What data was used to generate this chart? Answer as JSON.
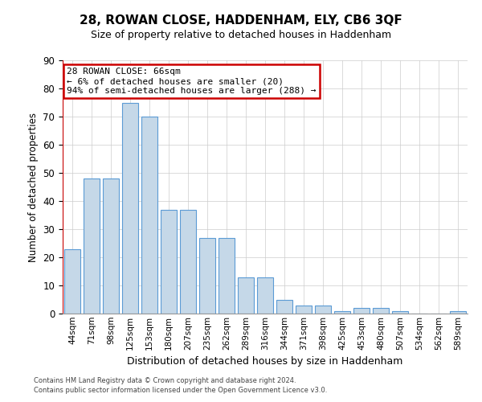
{
  "title": "28, ROWAN CLOSE, HADDENHAM, ELY, CB6 3QF",
  "subtitle": "Size of property relative to detached houses in Haddenham",
  "xlabel": "Distribution of detached houses by size in Haddenham",
  "ylabel": "Number of detached properties",
  "categories": [
    "44sqm",
    "71sqm",
    "98sqm",
    "125sqm",
    "153sqm",
    "180sqm",
    "207sqm",
    "235sqm",
    "262sqm",
    "289sqm",
    "316sqm",
    "344sqm",
    "371sqm",
    "398sqm",
    "425sqm",
    "453sqm",
    "480sqm",
    "507sqm",
    "534sqm",
    "562sqm",
    "589sqm"
  ],
  "values": [
    23,
    48,
    48,
    75,
    70,
    37,
    37,
    27,
    27,
    13,
    13,
    5,
    3,
    3,
    1,
    2,
    2,
    1,
    0,
    0,
    1
  ],
  "bar_color": "#c5d8e8",
  "bar_edge_color": "#5b9bd5",
  "grid_color": "#cccccc",
  "background_color": "#ffffff",
  "ylim": [
    0,
    90
  ],
  "yticks": [
    0,
    10,
    20,
    30,
    40,
    50,
    60,
    70,
    80,
    90
  ],
  "property_line_color": "#cc0000",
  "annotation_text": "28 ROWAN CLOSE: 66sqm\n← 6% of detached houses are smaller (20)\n94% of semi-detached houses are larger (288) →",
  "annotation_box_color": "#ffffff",
  "annotation_box_edge": "#cc0000",
  "footer_line1": "Contains HM Land Registry data © Crown copyright and database right 2024.",
  "footer_line2": "Contains public sector information licensed under the Open Government Licence v3.0."
}
